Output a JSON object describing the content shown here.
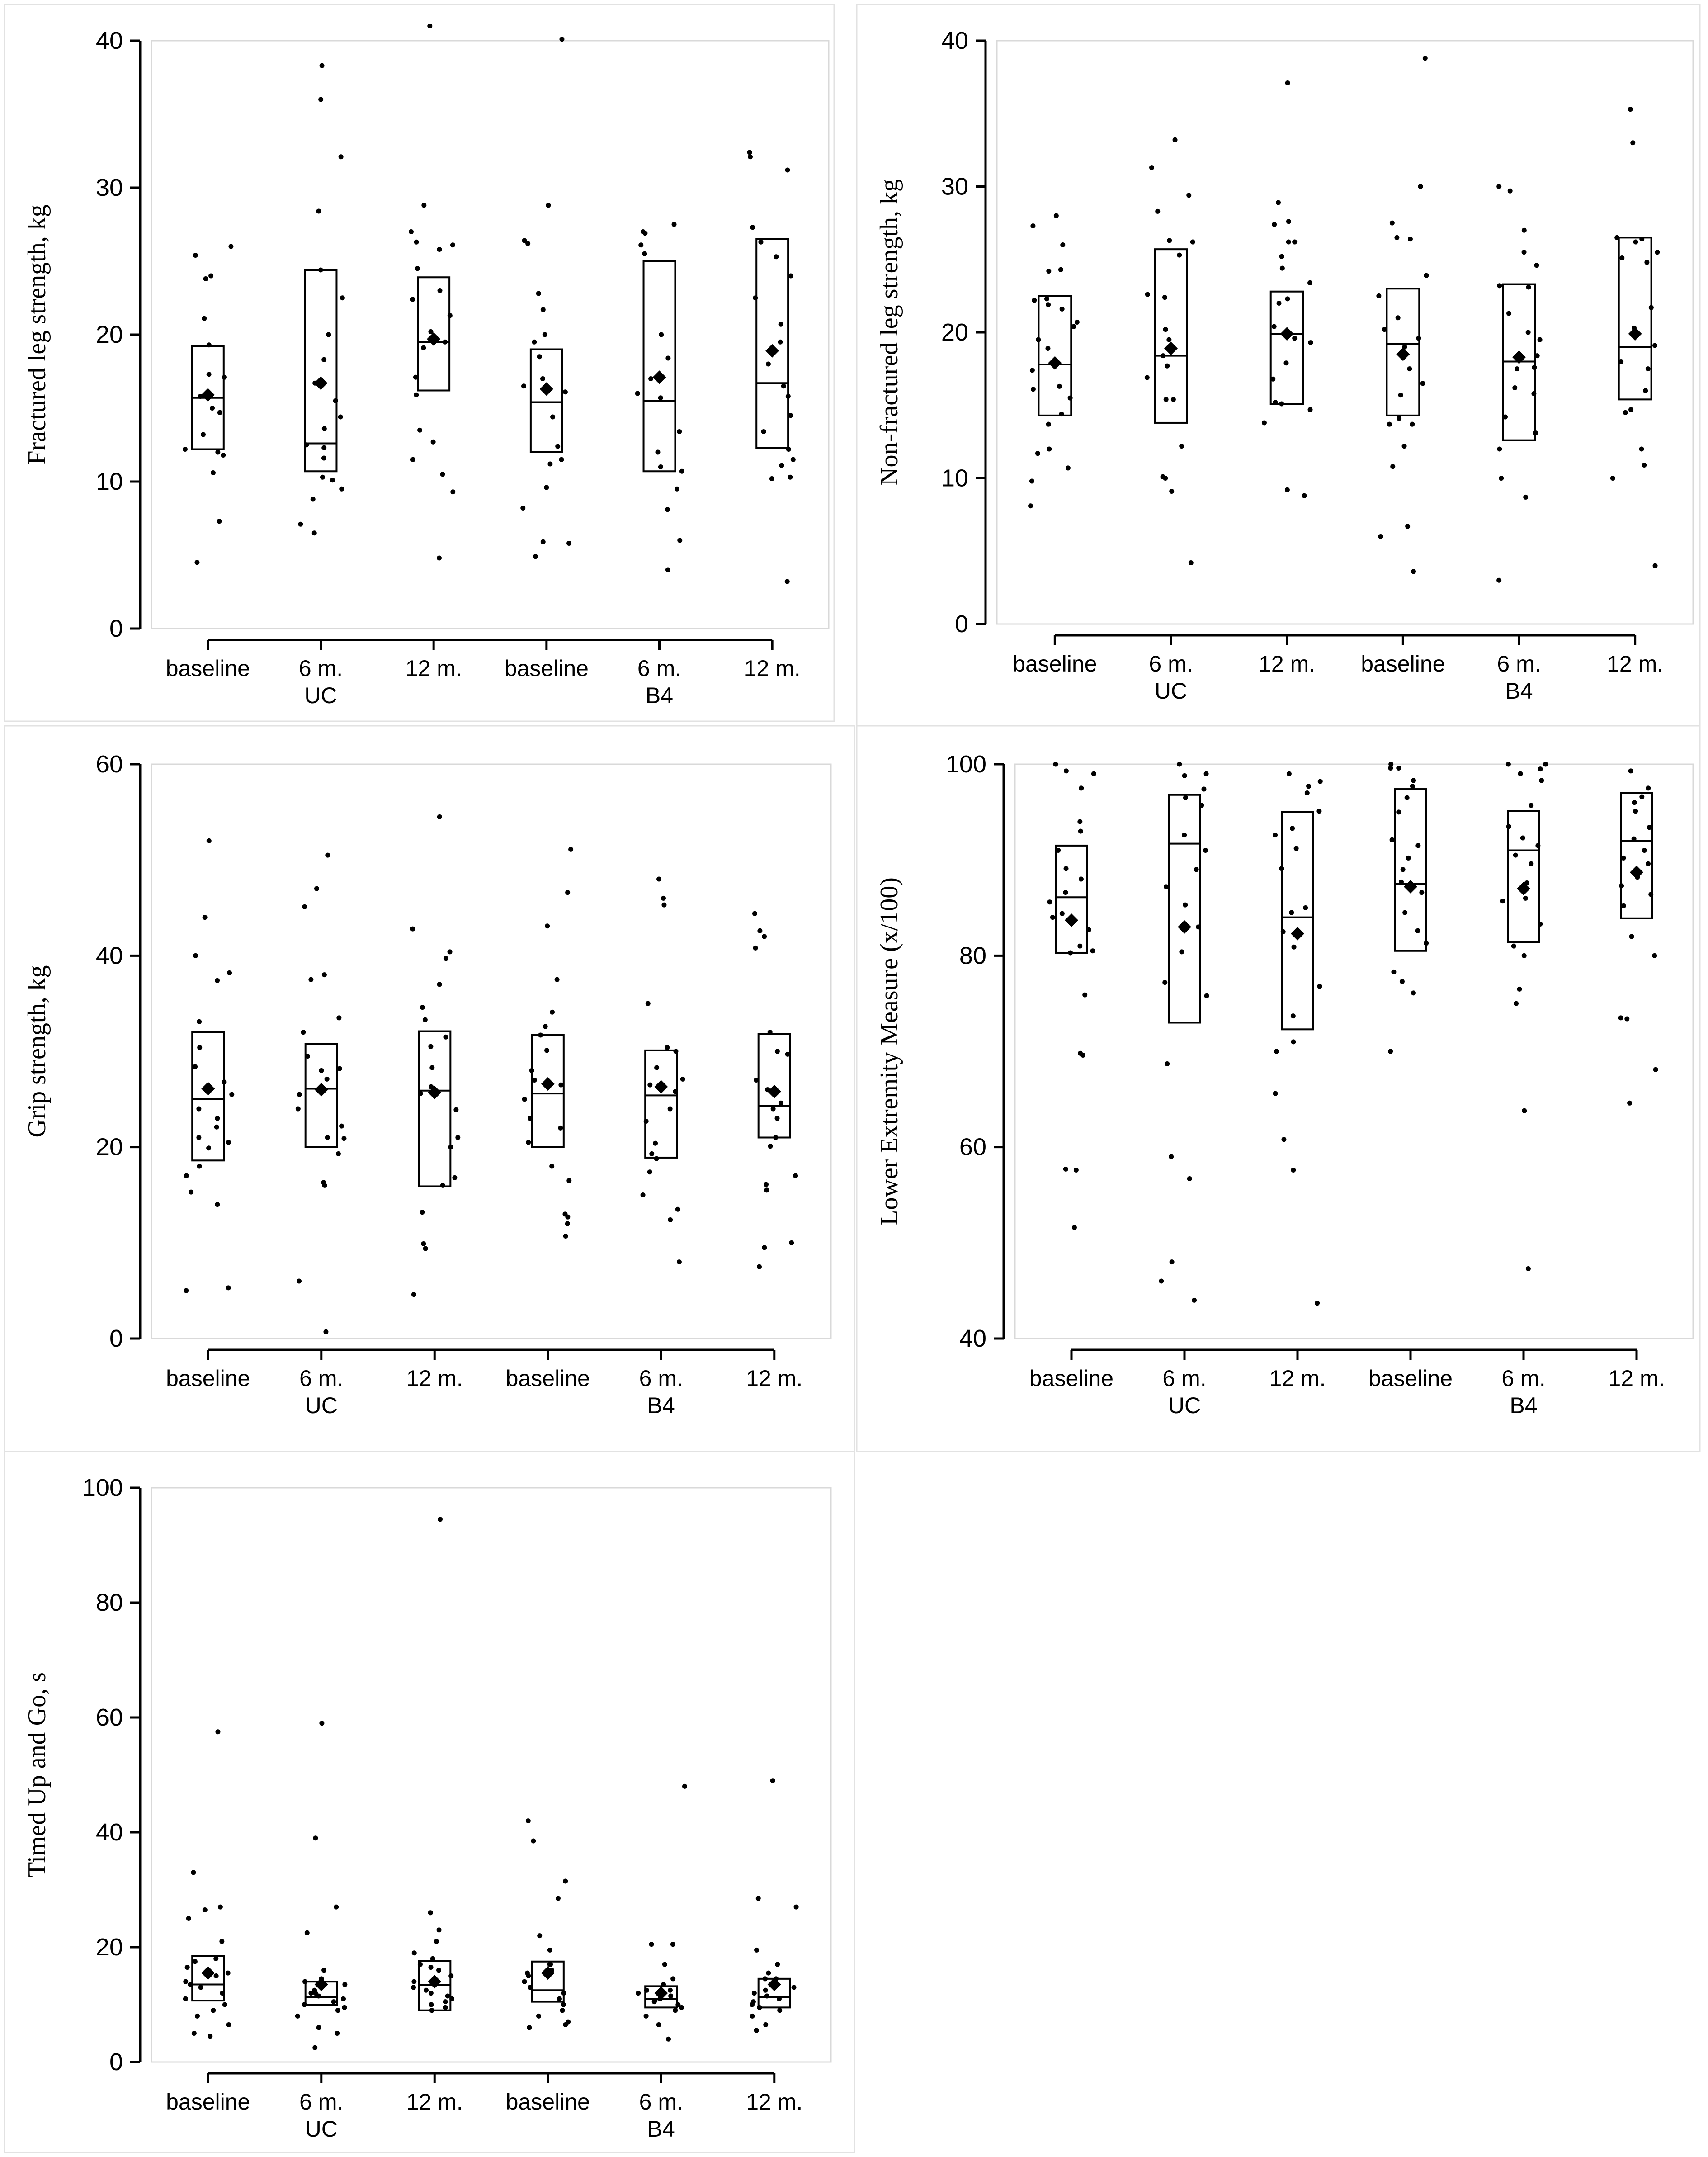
{
  "chart_data": [
    {
      "type": "box",
      "ylabel": "Fractured leg strength, kg",
      "ylim": [
        0,
        40
      ],
      "yticks": [
        0,
        10,
        20,
        30,
        40
      ],
      "categories": [
        "baseline",
        "6 m.",
        "12 m.",
        "baseline",
        "6 m.",
        "12 m."
      ],
      "group_labels": [
        "UC",
        "B4"
      ],
      "boxes": [
        {
          "q1": 12.2,
          "median": 15.7,
          "q3": 19.2,
          "mean": 15.9
        },
        {
          "q1": 10.7,
          "median": 12.6,
          "q3": 24.4,
          "mean": 16.7
        },
        {
          "q1": 16.2,
          "median": 19.5,
          "q3": 23.9,
          "mean": 19.7
        },
        {
          "q1": 12.0,
          "median": 15.4,
          "q3": 19.0,
          "mean": 16.3
        },
        {
          "q1": 10.7,
          "median": 15.5,
          "q3": 25.0,
          "mean": 17.1
        },
        {
          "q1": 12.3,
          "median": 16.7,
          "q3": 26.5,
          "mean": 18.9
        }
      ],
      "points": [
        [
          7.3,
          24,
          23.8,
          4.5,
          11.8,
          14.7,
          16.1,
          19.3,
          17.3,
          12.2,
          15.0,
          10.6,
          13.2,
          17.1,
          15.8,
          21.1,
          25.4,
          26.0,
          12.0
        ],
        [
          7.1,
          6.5,
          8.8,
          9.5,
          10.3,
          12.3,
          11.6,
          13.6,
          18.3,
          16.7,
          14.4,
          15.5,
          12.5,
          10.1,
          20.0,
          22.5,
          28.4,
          32.1,
          36.0,
          38.3,
          24.4
        ],
        [
          41,
          28.8,
          26.1,
          4.8,
          9.3,
          10.5,
          17.1,
          21.3,
          22.4,
          19.1,
          19.5,
          23.0,
          15.9,
          11.5,
          13.5,
          12.7,
          20.2,
          24.5,
          27.0,
          26.3,
          25.8
        ],
        [
          40.1,
          28.8,
          26.4,
          26.2,
          4.9,
          5.8,
          5.9,
          8.2,
          9.6,
          11.2,
          12.4,
          14.4,
          16.5,
          17.0,
          18.5,
          19.5,
          20.0,
          22.8,
          16.1,
          11.5,
          21.7
        ],
        [
          27,
          26.1,
          27.5,
          26.9,
          25.5,
          4.0,
          6.0,
          8.1,
          10.7,
          9.5,
          11.0,
          13.4,
          15.7,
          17.0,
          18.4,
          20.0,
          12.0,
          16.0
        ],
        [
          3.2,
          32.1,
          32.4,
          31.2,
          27.3,
          26.3,
          22.5,
          19.5,
          18.0,
          16.5,
          12.2,
          11.1,
          10.3,
          10.2,
          15.8,
          13.4,
          14.5,
          20.7,
          11.5,
          25.3,
          24.0
        ]
      ]
    },
    {
      "type": "box",
      "ylabel": "Non-fractured leg strength, kg",
      "ylim": [
        0,
        40
      ],
      "yticks": [
        0,
        10,
        20,
        30,
        40
      ],
      "categories": [
        "baseline",
        "6 m.",
        "12 m.",
        "baseline",
        "6 m.",
        "12 m."
      ],
      "group_labels": [
        "UC",
        "B4"
      ],
      "boxes": [
        {
          "q1": 14.3,
          "median": 17.8,
          "q3": 22.5,
          "mean": 17.9
        },
        {
          "q1": 13.8,
          "median": 18.4,
          "q3": 25.7,
          "mean": 18.9
        },
        {
          "q1": 15.1,
          "median": 19.9,
          "q3": 22.8,
          "mean": 19.9
        },
        {
          "q1": 14.3,
          "median": 19.2,
          "q3": 23.0,
          "mean": 18.5
        },
        {
          "q1": 12.6,
          "median": 18.0,
          "q3": 23.3,
          "mean": 18.3
        },
        {
          "q1": 15.4,
          "median": 19.0,
          "q3": 26.5,
          "mean": 19.9
        }
      ],
      "points": [
        [
          26,
          24.2,
          22.3,
          21.6,
          11.7,
          12.0,
          13.7,
          15.5,
          16.3,
          17.4,
          18.9,
          20.7,
          22.2,
          21.9,
          28,
          27.3,
          24.3,
          20.4,
          19.5,
          10.7,
          9.8,
          8.1,
          14.4,
          16.1
        ],
        [
          31.3,
          26.3,
          22.6,
          4.2,
          9.1,
          10.1,
          12.2,
          15.4,
          17.7,
          19.5,
          20.2,
          22.4,
          25.3,
          29.4,
          33.2,
          28.3,
          26.2,
          15.4,
          16.9,
          18.4,
          10.0
        ],
        [
          37.1,
          27.6,
          26.2,
          9.2,
          8.8,
          15.1,
          16.8,
          17.9,
          19.6,
          20.4,
          22.0,
          23.4,
          24.4,
          25.2,
          28.9,
          27.4,
          26.2,
          22.3,
          19.3,
          15.2,
          13.8,
          14.7
        ],
        [
          38.8,
          30.0,
          23.9,
          3.6,
          6.0,
          6.7,
          10.8,
          12.2,
          13.7,
          15.7,
          17.5,
          19.0,
          19.6,
          21.0,
          22.5,
          26.5,
          27.5,
          14.1,
          13.7,
          16.5,
          20.2,
          26.4
        ],
        [
          27,
          24.6,
          23.1,
          3.0,
          8.7,
          10.0,
          12.0,
          13.1,
          14.2,
          15.8,
          17.5,
          19.5,
          20.0,
          21.3,
          23.2,
          29.7,
          30.0,
          25.5,
          18.4,
          17.6,
          16.2
        ],
        [
          4.0,
          35.3,
          33.0,
          26.5,
          25.5,
          25.1,
          24.8,
          21.7,
          19.1,
          18.0,
          16.0,
          14.7,
          12.0,
          10.9,
          10.0,
          14.5,
          17.5,
          20.3,
          26.4,
          26.2
        ]
      ]
    },
    {
      "type": "box",
      "ylabel": "Grip strength, kg",
      "ylim": [
        0,
        60
      ],
      "yticks": [
        0,
        20,
        40,
        60
      ],
      "categories": [
        "baseline",
        "6 m.",
        "12 m.",
        "baseline",
        "6 m.",
        "12 m."
      ],
      "group_labels": [
        "UC",
        "B4"
      ],
      "boxes": [
        {
          "q1": 18.6,
          "median": 25.0,
          "q3": 32.0,
          "mean": 26.1
        },
        {
          "q1": 20.0,
          "median": 26.1,
          "q3": 30.8,
          "mean": 26.0
        },
        {
          "q1": 15.9,
          "median": 25.9,
          "q3": 32.1,
          "mean": 25.7
        },
        {
          "q1": 20.0,
          "median": 25.6,
          "q3": 31.7,
          "mean": 26.6
        },
        {
          "q1": 18.9,
          "median": 25.4,
          "q3": 30.1,
          "mean": 26.3
        },
        {
          "q1": 21.0,
          "median": 24.3,
          "q3": 31.8,
          "mean": 25.8
        }
      ],
      "points": [
        [
          5,
          14,
          44,
          18,
          20.5,
          22.1,
          24.0,
          25.5,
          26.8,
          28.4,
          30.4,
          33.1,
          37.4,
          52,
          40,
          38.2,
          19.9,
          17.0,
          15.3,
          5.3,
          23.0,
          21.0
        ],
        [
          47,
          38,
          37.5,
          50.5,
          45.1,
          6.0,
          0.7,
          16.0,
          16.3,
          19.3,
          21.0,
          22.2,
          24.0,
          25.5,
          27.1,
          28.2,
          29.5,
          32.0,
          33.5,
          28.0,
          20.9
        ],
        [
          54.5,
          42.8,
          40.4,
          39.7,
          37.0,
          31.5,
          30.5,
          28.3,
          26.3,
          25.6,
          23.9,
          20.0,
          16.8,
          16.0,
          13.2,
          9.9,
          9.4,
          4.6,
          21.0,
          33.3,
          34.6
        ],
        [
          51.1,
          46.6,
          43.1,
          37.5,
          34.1,
          32.6,
          31.7,
          28.0,
          27.0,
          26.5,
          25.0,
          23.0,
          22.0,
          20.5,
          18.0,
          16.5,
          13.0,
          12.0,
          10.7,
          12.7,
          30.1
        ],
        [
          48.0,
          46.0,
          45.3,
          35.0,
          30.0,
          28.3,
          27.1,
          26.5,
          25.8,
          24.0,
          22.7,
          20.4,
          18.8,
          17.4,
          15.0,
          13.5,
          12.4,
          8.0,
          19.3,
          30.4
        ],
        [
          44.4,
          42.6,
          42.0,
          40.8,
          32.0,
          29.7,
          27.0,
          26.0,
          24.6,
          23.0,
          20.1,
          17.0,
          16.1,
          15.5,
          10.0,
          9.5,
          7.5,
          24.0,
          30.0,
          21.0
        ]
      ]
    },
    {
      "type": "box",
      "ylabel": "Lower Extremity Measure (x/100)",
      "ylim": [
        40,
        100
      ],
      "yticks": [
        40,
        60,
        80,
        100
      ],
      "categories": [
        "baseline",
        "6 m.",
        "12 m.",
        "baseline",
        "6 m.",
        "12 m."
      ],
      "group_labels": [
        "UC",
        "B4"
      ],
      "boxes": [
        {
          "q1": 80.3,
          "median": 86.1,
          "q3": 91.5,
          "mean": 83.7
        },
        {
          "q1": 73.0,
          "median": 91.7,
          "q3": 96.8,
          "mean": 83.0
        },
        {
          "q1": 72.3,
          "median": 84.0,
          "q3": 95.0,
          "mean": 82.3
        },
        {
          "q1": 80.5,
          "median": 87.5,
          "q3": 97.4,
          "mean": 87.2
        },
        {
          "q1": 81.4,
          "median": 91.0,
          "q3": 95.1,
          "mean": 87.0
        },
        {
          "q1": 83.9,
          "median": 92.0,
          "q3": 97.0,
          "mean": 88.7
        }
      ],
      "points": [
        [
          100,
          99.3,
          97.5,
          93,
          91,
          88,
          86.6,
          85.6,
          84.0,
          82.7,
          81.0,
          80.3,
          75.9,
          69.8,
          57.7,
          57.6,
          51.6,
          69.6,
          84.4,
          89.1,
          94.0,
          99.0,
          80.5
        ],
        [
          100,
          98.8,
          96.5,
          95.7,
          92.6,
          91.0,
          89.0,
          87.2,
          85.3,
          83.0,
          80.4,
          77.2,
          75.8,
          68.7,
          56.7,
          44.0,
          46.0,
          48.0,
          59.0,
          97.4,
          99.0
        ],
        [
          99.0,
          98.2,
          97.7,
          95.1,
          93.3,
          92.6,
          91.2,
          89.1,
          85.0,
          84.5,
          82.5,
          80.9,
          76.8,
          73.7,
          71.0,
          70.0,
          65.6,
          60.8,
          57.6,
          43.7,
          97.0
        ],
        [
          100,
          99.6,
          98.3,
          97.7,
          96.5,
          92.1,
          90.2,
          89.0,
          87.7,
          86.6,
          84.5,
          82.6,
          81.3,
          78.3,
          77.3,
          76.1,
          70.0,
          91.5,
          95.0,
          99.6
        ],
        [
          100,
          99.5,
          99.0,
          98.3,
          95.7,
          93.5,
          91.5,
          90.5,
          89.6,
          87.6,
          86.0,
          85.7,
          83.3,
          81.0,
          80.0,
          76.5,
          75.0,
          63.8,
          47.3,
          100,
          92.3
        ],
        [
          99.3,
          97.5,
          96.6,
          95.1,
          93.4,
          92.2,
          91.0,
          89.6,
          88.2,
          87.3,
          86.4,
          85.2,
          82.0,
          80.0,
          73.4,
          73.5,
          68.1,
          64.6,
          96.0,
          90.2
        ]
      ]
    },
    {
      "type": "box",
      "ylabel": "Timed Up and Go, s",
      "ylim": [
        0,
        100
      ],
      "yticks": [
        0,
        20,
        40,
        60,
        80,
        100
      ],
      "categories": [
        "baseline",
        "6 m.",
        "12 m.",
        "baseline",
        "6 m.",
        "12 m."
      ],
      "group_labels": [
        "UC",
        "B4"
      ],
      "boxes": [
        {
          "q1": 10.7,
          "median": 13.5,
          "q3": 18.5,
          "mean": 15.5
        },
        {
          "q1": 10.0,
          "median": 11.3,
          "q3": 14.0,
          "mean": 13.5
        },
        {
          "q1": 9.0,
          "median": 13.4,
          "q3": 17.6,
          "mean": 14.0
        },
        {
          "q1": 10.5,
          "median": 12.5,
          "q3": 17.5,
          "mean": 15.5
        },
        {
          "q1": 9.5,
          "median": 11.0,
          "q3": 13.2,
          "mean": 12.0
        },
        {
          "q1": 9.5,
          "median": 11.3,
          "q3": 14.5,
          "mean": 13.5
        }
      ],
      "points": [
        [
          57.5,
          33.0,
          27.0,
          26.5,
          25.0,
          21.0,
          18.0,
          16.5,
          15.0,
          14.0,
          13.0,
          12.0,
          11.0,
          10.0,
          9.0,
          8.0,
          6.5,
          5.0,
          4.5,
          15.5,
          13.5,
          17.5
        ],
        [
          59.0,
          39.0,
          27.0,
          22.5,
          16.0,
          14.0,
          13.5,
          12.5,
          12.0,
          11.5,
          11.0,
          10.5,
          10.0,
          9.5,
          9.0,
          8.0,
          6.0,
          5.0,
          2.5,
          14.5,
          12.0
        ],
        [
          94.5,
          26.0,
          23.0,
          19.0,
          18.0,
          17.0,
          16.0,
          15.0,
          14.0,
          13.0,
          12.0,
          11.5,
          11.0,
          10.5,
          10.0,
          9.5,
          9.0,
          21.0,
          16.5,
          12.5
        ],
        [
          42.0,
          38.5,
          31.5,
          28.5,
          22.0,
          19.5,
          17.0,
          16.0,
          15.0,
          14.0,
          13.0,
          12.0,
          11.0,
          10.0,
          9.0,
          8.0,
          7.0,
          6.5,
          6.0,
          15.5,
          17.0
        ],
        [
          48.0,
          20.5,
          20.5,
          17.0,
          14.5,
          13.5,
          12.5,
          12.0,
          11.5,
          11.0,
          10.5,
          10.0,
          9.5,
          9.0,
          8.0,
          6.5,
          4.0,
          12.5,
          10.7
        ],
        [
          49.0,
          28.5,
          27.0,
          19.5,
          17.0,
          15.5,
          14.5,
          13.0,
          12.0,
          11.5,
          11.0,
          10.5,
          10.0,
          9.5,
          9.0,
          8.0,
          6.5,
          5.5,
          14.5,
          12.5
        ]
      ]
    }
  ]
}
